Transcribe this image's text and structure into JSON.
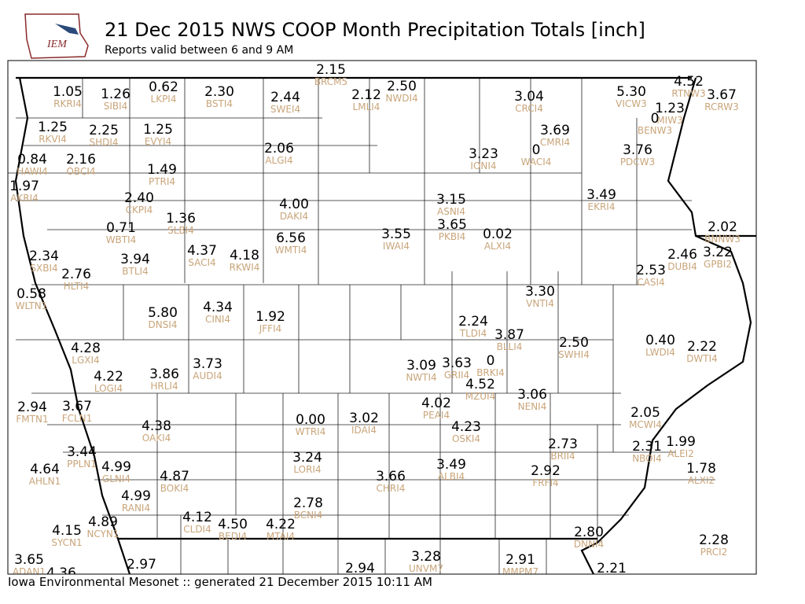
{
  "header": {
    "logo": "IEM",
    "title": "21 Dec 2015 NWS COOP Month Precipitation Totals [inch]",
    "subtitle": "Reports valid between 6 and 9 AM"
  },
  "footer": "Iowa Environmental Mesonet :: generated 21 December 2015 10:11 AM",
  "stations": [
    {
      "value": "1.05",
      "id": "RKRI4"
    },
    {
      "value": "1.26",
      "id": "SIBI4"
    },
    {
      "value": "0.62",
      "id": "LKPI4"
    },
    {
      "value": "2.30",
      "id": "BSTI4"
    },
    {
      "value": "2.15",
      "id": "BRCM5"
    },
    {
      "value": "2.44",
      "id": "SWEI4"
    },
    {
      "value": "2.12",
      "id": "LMLI4"
    },
    {
      "value": "2.50",
      "id": "NWDI4"
    },
    {
      "value": "3.04",
      "id": "CRCI4"
    },
    {
      "value": "5.30",
      "id": "VICW3"
    },
    {
      "value": "4.52",
      "id": "RTNW3"
    },
    {
      "value": "3.67",
      "id": "RCRW3"
    },
    {
      "value": "1.23",
      "id": "MIW3"
    },
    {
      "value": "0",
      "id": "BENW3"
    },
    {
      "value": "1.25",
      "id": "RKVI4"
    },
    {
      "value": "2.25",
      "id": "SHDI4"
    },
    {
      "value": "1.25",
      "id": "EVYI4"
    },
    {
      "value": "3.69",
      "id": "CMRI4"
    },
    {
      "value": "3.23",
      "id": "IONI4"
    },
    {
      "value": "0",
      "id": "WACI4"
    },
    {
      "value": "3.76",
      "id": "PDCW3"
    },
    {
      "value": "2.06",
      "id": "ALGI4"
    },
    {
      "value": "0.84",
      "id": "HAWI4"
    },
    {
      "value": "2.16",
      "id": "OBCI4"
    },
    {
      "value": "1.49",
      "id": "PTRI4"
    },
    {
      "value": "1.97",
      "id": "AKRI4"
    },
    {
      "value": "2.40",
      "id": "CKPI4"
    },
    {
      "value": "4.00",
      "id": "DAKI4"
    },
    {
      "value": "3.15",
      "id": "ASNI4"
    },
    {
      "value": "3.49",
      "id": "EKRI4"
    },
    {
      "value": "1.36",
      "id": "SLBI4"
    },
    {
      "value": "0.71",
      "id": "WBTI4"
    },
    {
      "value": "3.65",
      "id": "PKBI4"
    },
    {
      "value": "3.55",
      "id": "IWAI4"
    },
    {
      "value": "0.02",
      "id": "ALXI4"
    },
    {
      "value": "6.56",
      "id": "WMTI4"
    },
    {
      "value": "2.02",
      "id": "BNNW3"
    },
    {
      "value": "4.37",
      "id": "SACI4"
    },
    {
      "value": "4.18",
      "id": "RKWI4"
    },
    {
      "value": "2.34",
      "id": "SXBI4"
    },
    {
      "value": "3.94",
      "id": "BTLI4"
    },
    {
      "value": "2.46",
      "id": "DUBI4"
    },
    {
      "value": "3.22",
      "id": "GPBI2"
    },
    {
      "value": "2.76",
      "id": "HLTI4"
    },
    {
      "value": "2.53",
      "id": "CASI4"
    },
    {
      "value": "3.30",
      "id": "VNTI4"
    },
    {
      "value": "0.58",
      "id": "WLTN1"
    },
    {
      "value": "5.80",
      "id": "DNSI4"
    },
    {
      "value": "4.34",
      "id": "CINI4"
    },
    {
      "value": "1.92",
      "id": "JFFI4"
    },
    {
      "value": "2.24",
      "id": "TLDI4"
    },
    {
      "value": "3.87",
      "id": "BLLI4"
    },
    {
      "value": "0.40",
      "id": "LWDI4"
    },
    {
      "value": "2.50",
      "id": "SWHI4"
    },
    {
      "value": "2.22",
      "id": "DWTI4"
    },
    {
      "value": "4.28",
      "id": "LGXI4"
    },
    {
      "value": "3.09",
      "id": "NWTI4"
    },
    {
      "value": "3.63",
      "id": "GRII4"
    },
    {
      "value": "0",
      "id": "BRKI4"
    },
    {
      "value": "4.22",
      "id": "LOGI4"
    },
    {
      "value": "3.86",
      "id": "HRLI4"
    },
    {
      "value": "3.73",
      "id": "AUDI4"
    },
    {
      "value": "4.52",
      "id": "MZUI4"
    },
    {
      "value": "3.06",
      "id": "NENI4"
    },
    {
      "value": "2.94",
      "id": "FMTN1"
    },
    {
      "value": "3.67",
      "id": "FCLN1"
    },
    {
      "value": "4.02",
      "id": "PEAI4"
    },
    {
      "value": "2.05",
      "id": "MCWI4"
    },
    {
      "value": "4.38",
      "id": "OAKI4"
    },
    {
      "value": "0.00",
      "id": "WTRI4"
    },
    {
      "value": "3.02",
      "id": "IDAI4"
    },
    {
      "value": "4.23",
      "id": "OSKI4"
    },
    {
      "value": "2.31",
      "id": "NBOI4"
    },
    {
      "value": "1.99",
      "id": "ALEI2"
    },
    {
      "value": "2.73",
      "id": "BRII4"
    },
    {
      "value": "3.44",
      "id": "PPLN1"
    },
    {
      "value": "3.24",
      "id": "LORI4"
    },
    {
      "value": "4.64",
      "id": "AHLN1"
    },
    {
      "value": "4.99",
      "id": "GLNI4"
    },
    {
      "value": "3.49",
      "id": "ALBI4"
    },
    {
      "value": "4.87",
      "id": "BOKI4"
    },
    {
      "value": "3.66",
      "id": "CHRI4"
    },
    {
      "value": "2.92",
      "id": "FRFI4"
    },
    {
      "value": "1.78",
      "id": "ALXI2"
    },
    {
      "value": "4.99",
      "id": "RANI4"
    },
    {
      "value": "2.78",
      "id": "BCNI4"
    },
    {
      "value": "4.12",
      "id": "CLDI4"
    },
    {
      "value": "4.50",
      "id": "BEDI4"
    },
    {
      "value": "4.22",
      "id": "MTAI4"
    },
    {
      "value": "4.15",
      "id": "SYCN1"
    },
    {
      "value": "4.89",
      "id": "NCYN1"
    },
    {
      "value": "2.80",
      "id": "DNNI4"
    },
    {
      "value": "2.28",
      "id": "PRCI2"
    },
    {
      "value": "3.65",
      "id": "ADAN1"
    },
    {
      "value": "3.28",
      "id": "UNVM7"
    },
    {
      "value": "2.91",
      "id": "MMPM7"
    },
    {
      "value": "2.97"
    },
    {
      "value": "2.94"
    },
    {
      "value": "2.21"
    },
    {
      "value": "4.36"
    }
  ]
}
